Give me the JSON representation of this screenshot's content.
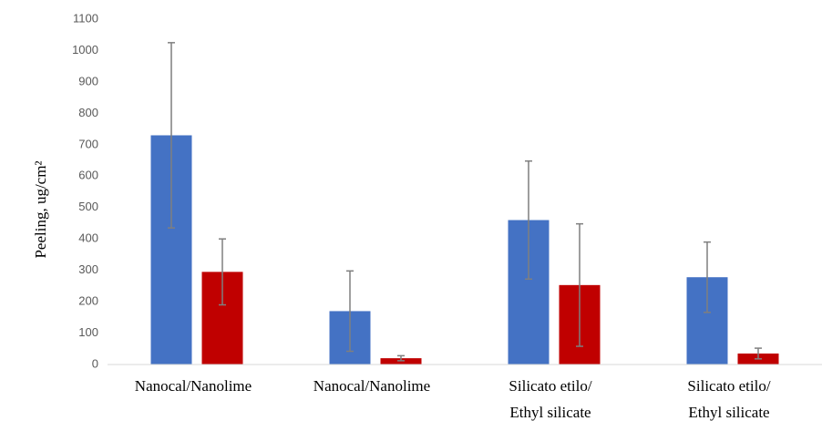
{
  "chart_data": {
    "type": "bar",
    "ylabel": "Peeling, ug/cm²",
    "xlabel": "",
    "ylim": [
      0,
      1100
    ],
    "yticks": [
      0,
      100,
      200,
      300,
      400,
      500,
      600,
      700,
      800,
      900,
      1000,
      1100
    ],
    "grid": false,
    "legend": "none",
    "categories": [
      [
        "Nanocal/Nanolime"
      ],
      [
        "Nanocal/Nanolime"
      ],
      [
        "Silicato etilo/",
        "Ethyl silicate"
      ],
      [
        "Silicato etilo/",
        "Ethyl silicate"
      ]
    ],
    "series": [
      {
        "color": "#4472C4",
        "values": [
          730,
          170,
          460,
          278
        ],
        "errors": [
          295,
          128,
          188,
          112
        ]
      },
      {
        "color": "#C00000",
        "values": [
          295,
          20,
          253,
          35
        ],
        "errors": [
          105,
          8,
          195,
          17
        ]
      }
    ],
    "error_bar_color": "#7F7F7F",
    "axis_color": "#D9D9D9"
  }
}
